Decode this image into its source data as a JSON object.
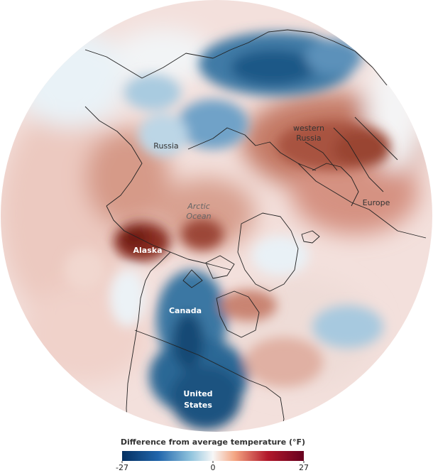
{
  "map": {
    "regions": {
      "russia": "Russia",
      "western_russia_line1": "western",
      "western_russia_line2": "Russia",
      "arctic_ocean_line1": "Arctic",
      "arctic_ocean_line2": "Ocean",
      "europe": "Europe",
      "alaska": "Alaska",
      "canada": "Canada",
      "united_states_line1": "United",
      "united_states_line2": "States"
    },
    "colors": {
      "cold_extreme": "#053061",
      "cold_mid": "#4393c3",
      "neutral": "#f7f7f7",
      "warm_mid": "#d6604d",
      "warm_extreme": "#67001f",
      "coastline": "#222222",
      "label_light": "#ffffff",
      "label_dark": "#333333",
      "label_ocean": "#666666"
    }
  },
  "legend": {
    "title": "Difference from average temperature (°F)",
    "min_label": "-27",
    "mid_label": "0",
    "max_label": "27",
    "min_value": -27,
    "max_value": 27
  }
}
